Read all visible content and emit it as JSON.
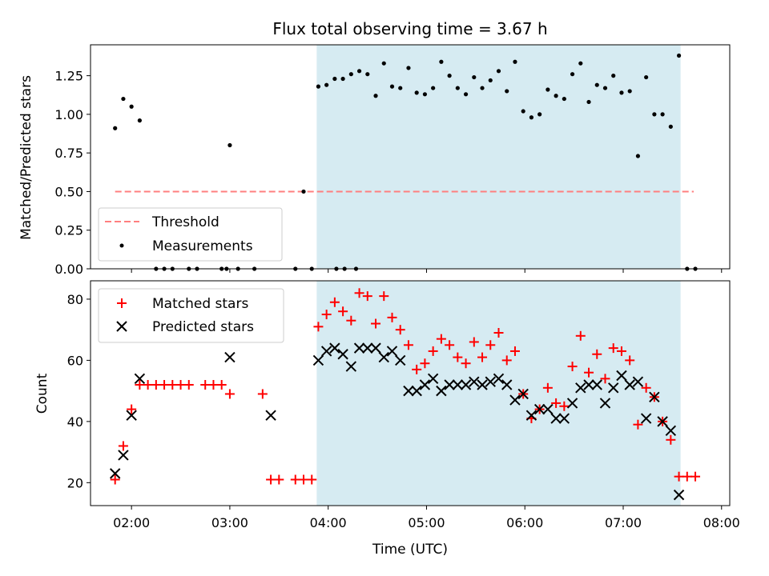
{
  "chart_data": [
    {
      "type": "scatter",
      "title": "Flux total observing time = 3.67 h",
      "ylabel": "Matched/Predicted stars",
      "xlabel": "",
      "xlim": [
        "01:35",
        "08:05"
      ],
      "ylim": [
        0,
        1.45
      ],
      "yticks": [
        "0.00",
        "0.25",
        "0.50",
        "0.75",
        "1.00",
        "1.25"
      ],
      "shaded_region": [
        "03:53",
        "07:35"
      ],
      "threshold": {
        "name": "Threshold",
        "value": 0.5,
        "x_range": [
          "01:50",
          "07:43"
        ],
        "color": "#ff7f7f"
      },
      "legend": {
        "position": "lower-left",
        "entries": [
          "Threshold",
          "Measurements"
        ]
      },
      "series": [
        {
          "name": "Measurements",
          "color": "#000000",
          "points": [
            [
              "01:50",
              0.91
            ],
            [
              "01:55",
              1.1
            ],
            [
              "02:00",
              1.05
            ],
            [
              "02:05",
              0.96
            ],
            [
              "02:15",
              0.0
            ],
            [
              "02:20",
              0.0
            ],
            [
              "02:25",
              0.0
            ],
            [
              "02:35",
              0.0
            ],
            [
              "02:40",
              0.0
            ],
            [
              "02:55",
              0.0
            ],
            [
              "02:58",
              0.0
            ],
            [
              "03:05",
              0.0
            ],
            [
              "03:15",
              0.0
            ],
            [
              "03:00",
              0.8
            ],
            [
              "03:40",
              0.0
            ],
            [
              "03:45",
              0.5
            ],
            [
              "03:50",
              0.0
            ],
            [
              "04:05",
              0.0
            ],
            [
              "04:10",
              0.0
            ],
            [
              "04:17",
              0.0
            ],
            [
              "03:54",
              1.18
            ],
            [
              "03:59",
              1.19
            ],
            [
              "04:04",
              1.23
            ],
            [
              "04:09",
              1.23
            ],
            [
              "04:14",
              1.26
            ],
            [
              "04:19",
              1.28
            ],
            [
              "04:24",
              1.26
            ],
            [
              "04:29",
              1.12
            ],
            [
              "04:34",
              1.33
            ],
            [
              "04:39",
              1.18
            ],
            [
              "04:44",
              1.17
            ],
            [
              "04:49",
              1.3
            ],
            [
              "04:54",
              1.14
            ],
            [
              "04:59",
              1.13
            ],
            [
              "05:04",
              1.17
            ],
            [
              "05:09",
              1.34
            ],
            [
              "05:14",
              1.25
            ],
            [
              "05:19",
              1.17
            ],
            [
              "05:24",
              1.13
            ],
            [
              "05:29",
              1.24
            ],
            [
              "05:34",
              1.17
            ],
            [
              "05:39",
              1.22
            ],
            [
              "05:44",
              1.28
            ],
            [
              "05:49",
              1.15
            ],
            [
              "05:54",
              1.34
            ],
            [
              "05:59",
              1.02
            ],
            [
              "06:04",
              0.98
            ],
            [
              "06:09",
              1.0
            ],
            [
              "06:14",
              1.16
            ],
            [
              "06:19",
              1.12
            ],
            [
              "06:24",
              1.1
            ],
            [
              "06:29",
              1.26
            ],
            [
              "06:34",
              1.33
            ],
            [
              "06:39",
              1.08
            ],
            [
              "06:44",
              1.19
            ],
            [
              "06:49",
              1.17
            ],
            [
              "06:54",
              1.25
            ],
            [
              "06:59",
              1.14
            ],
            [
              "07:04",
              1.15
            ],
            [
              "07:09",
              0.73
            ],
            [
              "07:14",
              1.24
            ],
            [
              "07:19",
              1.0
            ],
            [
              "07:24",
              1.0
            ],
            [
              "07:29",
              0.92
            ],
            [
              "07:34",
              1.38
            ],
            [
              "07:39",
              0.0
            ],
            [
              "07:44",
              0.0
            ]
          ]
        }
      ]
    },
    {
      "type": "scatter",
      "title": "",
      "ylabel": "Count",
      "xlabel": "Time (UTC)",
      "xlim": [
        "01:35",
        "08:05"
      ],
      "ylim": [
        12.5,
        86
      ],
      "yticks": [
        "20",
        "40",
        "60",
        "80"
      ],
      "xticks": [
        "02:00",
        "03:00",
        "04:00",
        "05:00",
        "06:00",
        "07:00",
        "08:00"
      ],
      "shaded_region": [
        "03:53",
        "07:35"
      ],
      "legend": {
        "position": "top-left",
        "entries": [
          "Matched stars",
          "Predicted stars"
        ]
      },
      "series": [
        {
          "name": "Matched stars",
          "marker": "+",
          "color": "#ff0000",
          "points": [
            [
              "01:50",
              21
            ],
            [
              "01:55",
              32
            ],
            [
              "02:00",
              44
            ],
            [
              "02:05",
              52
            ],
            [
              "02:10",
              52
            ],
            [
              "02:15",
              52
            ],
            [
              "02:20",
              52
            ],
            [
              "02:25",
              52
            ],
            [
              "02:30",
              52
            ],
            [
              "02:35",
              52
            ],
            [
              "02:45",
              52
            ],
            [
              "02:50",
              52
            ],
            [
              "02:55",
              52
            ],
            [
              "03:00",
              49
            ],
            [
              "03:20",
              49
            ],
            [
              "03:25",
              21
            ],
            [
              "03:30",
              21
            ],
            [
              "03:40",
              21
            ],
            [
              "03:45",
              21
            ],
            [
              "03:50",
              21
            ],
            [
              "03:54",
              71
            ],
            [
              "03:59",
              75
            ],
            [
              "04:04",
              79
            ],
            [
              "04:09",
              76
            ],
            [
              "04:14",
              73
            ],
            [
              "04:19",
              82
            ],
            [
              "04:24",
              81
            ],
            [
              "04:29",
              72
            ],
            [
              "04:34",
              81
            ],
            [
              "04:39",
              74
            ],
            [
              "04:44",
              70
            ],
            [
              "04:49",
              65
            ],
            [
              "04:54",
              57
            ],
            [
              "04:59",
              59
            ],
            [
              "05:04",
              63
            ],
            [
              "05:09",
              67
            ],
            [
              "05:14",
              65
            ],
            [
              "05:19",
              61
            ],
            [
              "05:24",
              59
            ],
            [
              "05:29",
              66
            ],
            [
              "05:34",
              61
            ],
            [
              "05:39",
              65
            ],
            [
              "05:44",
              69
            ],
            [
              "05:49",
              60
            ],
            [
              "05:54",
              63
            ],
            [
              "05:59",
              49
            ],
            [
              "06:04",
              41
            ],
            [
              "06:09",
              44
            ],
            [
              "06:14",
              51
            ],
            [
              "06:19",
              46
            ],
            [
              "06:24",
              45
            ],
            [
              "06:29",
              58
            ],
            [
              "06:34",
              68
            ],
            [
              "06:39",
              56
            ],
            [
              "06:44",
              62
            ],
            [
              "06:49",
              54
            ],
            [
              "06:54",
              64
            ],
            [
              "06:59",
              63
            ],
            [
              "07:04",
              60
            ],
            [
              "07:09",
              39
            ],
            [
              "07:14",
              51
            ],
            [
              "07:19",
              48
            ],
            [
              "07:24",
              40
            ],
            [
              "07:29",
              34
            ],
            [
              "07:34",
              22
            ],
            [
              "07:39",
              22
            ],
            [
              "07:44",
              22
            ]
          ]
        },
        {
          "name": "Predicted stars",
          "marker": "x",
          "color": "#000000",
          "points": [
            [
              "01:50",
              23
            ],
            [
              "01:55",
              29
            ],
            [
              "02:00",
              42
            ],
            [
              "02:05",
              54
            ],
            [
              "03:00",
              61
            ],
            [
              "03:25",
              42
            ],
            [
              "03:54",
              60
            ],
            [
              "03:59",
              63
            ],
            [
              "04:04",
              64
            ],
            [
              "04:09",
              62
            ],
            [
              "04:14",
              58
            ],
            [
              "04:19",
              64
            ],
            [
              "04:24",
              64
            ],
            [
              "04:29",
              64
            ],
            [
              "04:34",
              61
            ],
            [
              "04:39",
              63
            ],
            [
              "04:44",
              60
            ],
            [
              "04:49",
              50
            ],
            [
              "04:54",
              50
            ],
            [
              "04:59",
              52
            ],
            [
              "05:04",
              54
            ],
            [
              "05:09",
              50
            ],
            [
              "05:14",
              52
            ],
            [
              "05:19",
              52
            ],
            [
              "05:24",
              52
            ],
            [
              "05:29",
              53
            ],
            [
              "05:34",
              52
            ],
            [
              "05:39",
              53
            ],
            [
              "05:44",
              54
            ],
            [
              "05:49",
              52
            ],
            [
              "05:54",
              47
            ],
            [
              "05:59",
              49
            ],
            [
              "06:04",
              42
            ],
            [
              "06:09",
              44
            ],
            [
              "06:14",
              44
            ],
            [
              "06:19",
              41
            ],
            [
              "06:24",
              41
            ],
            [
              "06:29",
              46
            ],
            [
              "06:34",
              51
            ],
            [
              "06:39",
              52
            ],
            [
              "06:44",
              52
            ],
            [
              "06:49",
              46
            ],
            [
              "06:54",
              51
            ],
            [
              "06:59",
              55
            ],
            [
              "07:04",
              52
            ],
            [
              "07:09",
              53
            ],
            [
              "07:14",
              41
            ],
            [
              "07:19",
              48
            ],
            [
              "07:24",
              40
            ],
            [
              "07:29",
              37
            ],
            [
              "07:34",
              16
            ]
          ]
        }
      ]
    }
  ],
  "colors": {
    "shade": "#add8e6",
    "matched": "#ff0000",
    "predicted": "#000000",
    "threshold": "#ff7f7f"
  }
}
